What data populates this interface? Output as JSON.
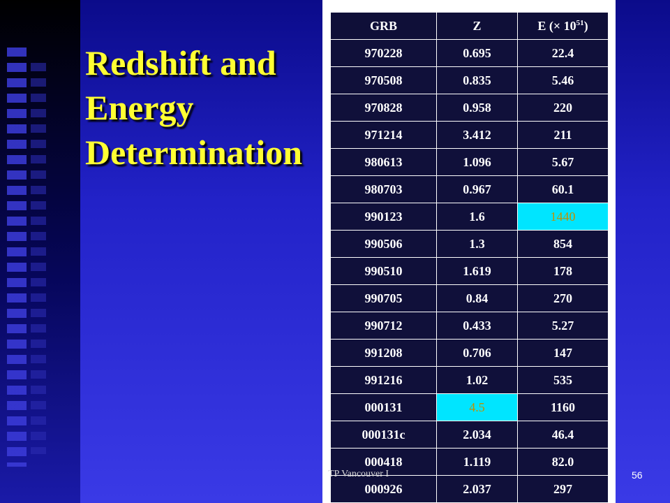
{
  "slide": {
    "title_lines": [
      "Redshift and",
      "Energy",
      "Determination"
    ],
    "footer": "TP Vancouver I",
    "page_number": "56"
  },
  "table": {
    "headers": {
      "grb": "GRB",
      "z": "Z",
      "e_prefix": "E (× 10",
      "e_exp": "51",
      "e_suffix": ")"
    },
    "rows": [
      {
        "grb": "970228",
        "z": "0.695",
        "e": "22.4"
      },
      {
        "grb": "970508",
        "z": "0.835",
        "e": "5.46"
      },
      {
        "grb": "970828",
        "z": "0.958",
        "e": "220"
      },
      {
        "grb": "971214",
        "z": "3.412",
        "e": "211"
      },
      {
        "grb": "980613",
        "z": "1.096",
        "e": "5.67"
      },
      {
        "grb": "980703",
        "z": "0.967",
        "e": "60.1"
      },
      {
        "grb": "990123",
        "z": "1.6",
        "e": "1440"
      },
      {
        "grb": "990506",
        "z": "1.3",
        "e": "854"
      },
      {
        "grb": "990510",
        "z": "1.619",
        "e": "178"
      },
      {
        "grb": "990705",
        "z": "0.84",
        "e": "270"
      },
      {
        "grb": "990712",
        "z": "0.433",
        "e": "5.27"
      },
      {
        "grb": "991208",
        "z": "0.706",
        "e": "147"
      },
      {
        "grb": "991216",
        "z": "1.02",
        "e": "535"
      },
      {
        "grb": "000131",
        "z": "4.5",
        "e": "1160"
      },
      {
        "grb": "000131c",
        "z": "2.034",
        "e": "46.4"
      },
      {
        "grb": "000418",
        "z": "1.119",
        "e": "82.0"
      },
      {
        "grb": "000926",
        "z": "2.037",
        "e": "297"
      }
    ],
    "highlight_color": "#00e5ff"
  }
}
